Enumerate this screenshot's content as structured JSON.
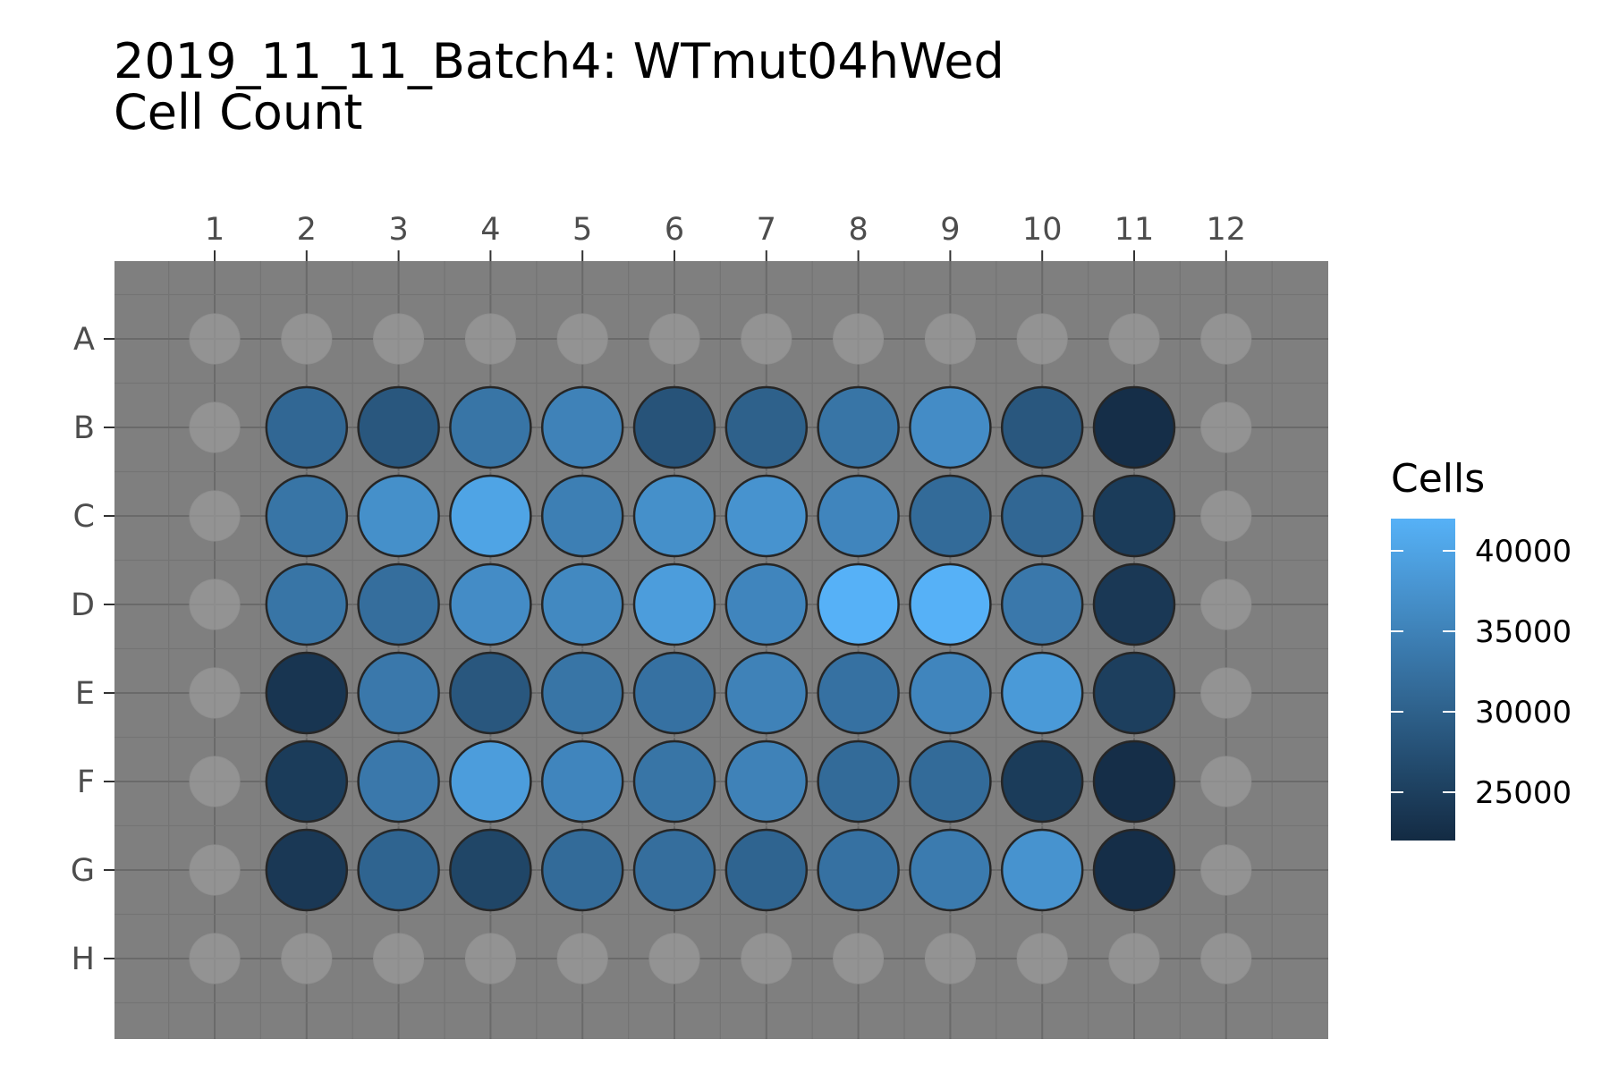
{
  "title_line1": "2019_11_11_Batch4: WTmut04hWed",
  "title_line2": "Cell Count",
  "colors": {
    "panel_background": "#7f7f7f",
    "grid_major": "#6a6a6a",
    "grid_minor": "#747474",
    "empty_well": "#9a9a9a",
    "well_outline": "#262626",
    "low": "#132B43",
    "high": "#56B1F7"
  },
  "chart_data": {
    "type": "heatmap",
    "columns": [
      "1",
      "2",
      "3",
      "4",
      "5",
      "6",
      "7",
      "8",
      "9",
      "10",
      "11",
      "12"
    ],
    "rows": [
      "A",
      "B",
      "C",
      "D",
      "E",
      "F",
      "G",
      "H"
    ],
    "legend": {
      "title": "Cells",
      "placement": "right",
      "breaks": [
        25000,
        30000,
        35000,
        40000
      ],
      "break_labels": [
        "25000",
        "30000",
        "35000",
        "40000"
      ],
      "range": [
        22000,
        42000
      ]
    },
    "grid": true,
    "values": [
      [
        null,
        null,
        null,
        null,
        null,
        null,
        null,
        null,
        null,
        null,
        null,
        null
      ],
      [
        null,
        31000,
        28500,
        33000,
        35000,
        28000,
        30000,
        33000,
        36500,
        28500,
        22500,
        null
      ],
      [
        null,
        33000,
        37000,
        40000,
        34500,
        37000,
        37500,
        35500,
        31500,
        31000,
        24500,
        null
      ],
      [
        null,
        33000,
        32000,
        36500,
        36000,
        39000,
        35500,
        42000,
        42000,
        33500,
        24000,
        null
      ],
      [
        null,
        23500,
        33500,
        28500,
        33000,
        32500,
        35000,
        32500,
        35500,
        38500,
        25000,
        null
      ],
      [
        null,
        24500,
        33500,
        39000,
        35500,
        33000,
        35000,
        31500,
        31500,
        24500,
        22500,
        null
      ],
      [
        null,
        24000,
        30500,
        26000,
        31500,
        32000,
        30500,
        32500,
        34000,
        37500,
        22500,
        null
      ],
      [
        null,
        null,
        null,
        null,
        null,
        null,
        null,
        null,
        null,
        null,
        null,
        null
      ]
    ]
  }
}
